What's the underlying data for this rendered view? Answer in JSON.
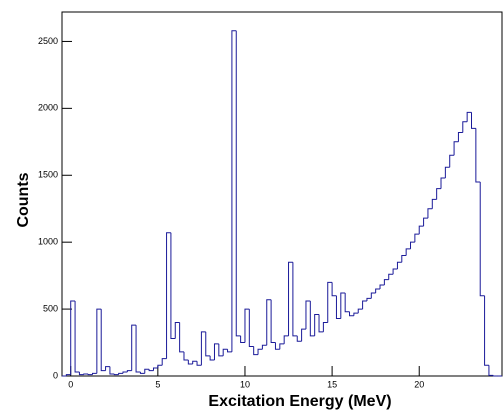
{
  "chart_data": {
    "type": "histogram",
    "x_label": "Excitation Energy (MeV)",
    "y_label": "Counts",
    "color": "#1a1a99",
    "bins": [
      -0.5,
      -0.25,
      0,
      0.25,
      0.5,
      0.75,
      1,
      1.25,
      1.5,
      1.75,
      2,
      2.25,
      2.5,
      2.75,
      3,
      3.25,
      3.5,
      3.75,
      4,
      4.25,
      4.5,
      4.75,
      5,
      5.25,
      5.5,
      5.75,
      6,
      6.25,
      6.5,
      6.75,
      7,
      7.25,
      7.5,
      7.75,
      8,
      8.25,
      8.5,
      8.75,
      9,
      9.25,
      9.5,
      9.75,
      10,
      10.25,
      10.5,
      10.75,
      11,
      11.25,
      11.5,
      11.75,
      12,
      12.25,
      12.5,
      12.75,
      13,
      13.25,
      13.5,
      13.75,
      14,
      14.25,
      14.5,
      14.75,
      15,
      15.25,
      15.5,
      15.75,
      16,
      16.25,
      16.5,
      16.75,
      17,
      17.25,
      17.5,
      17.75,
      18,
      18.25,
      18.5,
      18.75,
      19,
      19.25,
      19.5,
      19.75,
      20,
      20.25,
      20.5,
      20.75,
      21,
      21.25,
      21.5,
      21.75,
      22,
      22.25,
      22.5,
      22.75,
      23,
      23.25,
      23.5,
      23.75,
      24,
      24.25,
      24.5,
      24.75
    ],
    "counts": [
      0,
      10,
      560,
      30,
      10,
      15,
      10,
      20,
      500,
      40,
      70,
      15,
      10,
      20,
      30,
      40,
      380,
      30,
      20,
      50,
      40,
      60,
      80,
      130,
      1070,
      280,
      400,
      180,
      120,
      90,
      110,
      80,
      330,
      150,
      120,
      240,
      150,
      200,
      180,
      2580,
      300,
      250,
      500,
      220,
      160,
      200,
      230,
      570,
      250,
      200,
      240,
      300,
      850,
      300,
      260,
      350,
      560,
      300,
      460,
      330,
      400,
      700,
      600,
      430,
      620,
      480,
      450,
      470,
      500,
      560,
      580,
      620,
      650,
      680,
      720,
      760,
      800,
      850,
      900,
      950,
      1000,
      1060,
      1120,
      1180,
      1250,
      1320,
      1400,
      1480,
      1560,
      1650,
      1750,
      1820,
      1900,
      1970,
      1850,
      1450,
      600,
      80,
      5,
      0,
      0
    ],
    "xlim": [
      -0.5,
      24.75
    ],
    "ylim": [
      0,
      2720
    ],
    "xticks": [
      0,
      5,
      10,
      15,
      20
    ],
    "yticks": [
      0,
      500,
      1000,
      1500,
      2000,
      2500
    ]
  }
}
